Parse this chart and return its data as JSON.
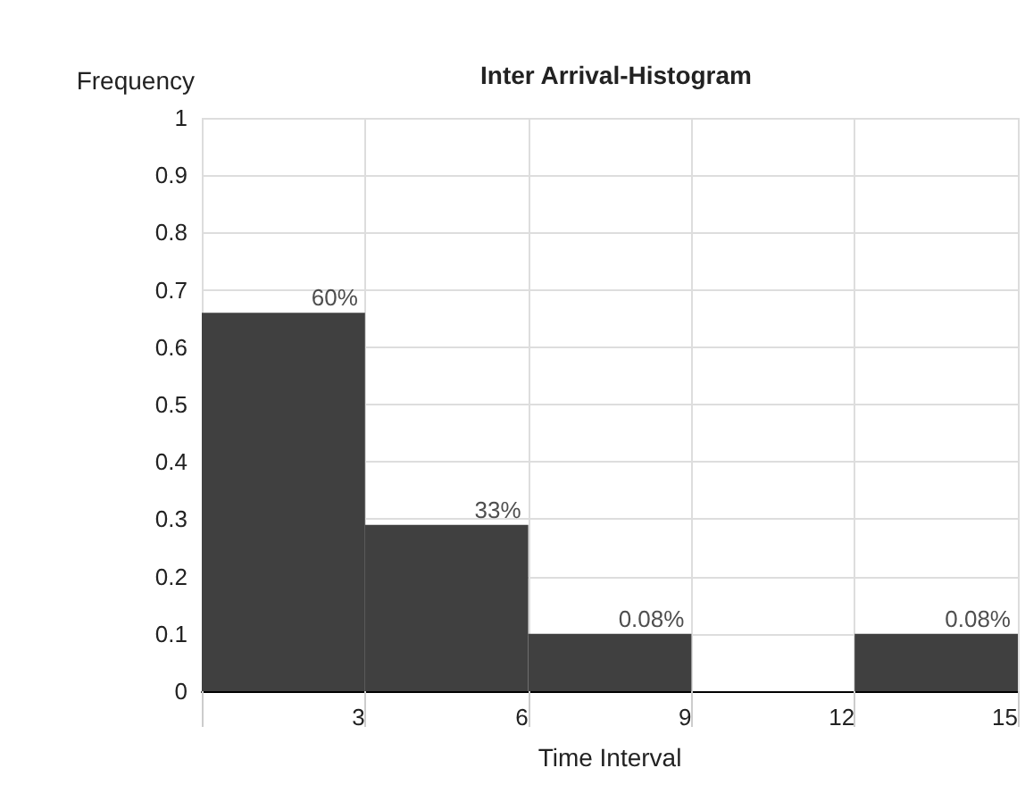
{
  "chart_data": {
    "type": "histogram",
    "title": "Inter Arrival-Histogram",
    "xlabel": "Time Interval",
    "ylabel": "Frequency",
    "bins": [
      0,
      3,
      6,
      9,
      12,
      15
    ],
    "values": [
      0.66,
      0.29,
      0.1,
      0,
      0.1
    ],
    "annotations": [
      {
        "text": "60%",
        "x": 3,
        "y": 0.66
      },
      {
        "text": "33%",
        "x": 6,
        "y": 0.29
      },
      {
        "text": "0.08%",
        "x": 9,
        "y": 0.1
      },
      {
        "text": "0.08%",
        "x": 15,
        "y": 0.1
      }
    ],
    "color": "#404040",
    "xlim": [
      0,
      15
    ],
    "xticks": [
      {
        "value": 0,
        "label": null
      },
      3,
      6,
      9,
      12,
      15
    ],
    "ylim": [
      0,
      1
    ],
    "yticks": [
      0,
      0.1,
      0.2,
      0.3,
      0.4,
      0.5,
      0.6,
      0.7,
      0.8,
      0.9,
      1
    ],
    "grid": true
  }
}
